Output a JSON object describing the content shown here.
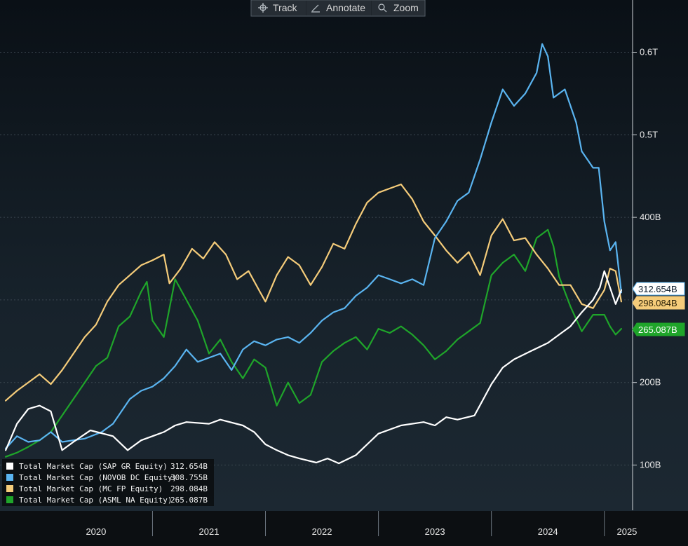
{
  "toolbar": {
    "track_label": "Track",
    "annotate_label": "Annotate",
    "zoom_label": "Zoom"
  },
  "chart_data": {
    "type": "line",
    "title": "",
    "xlabel": "",
    "ylabel": "",
    "x_ticks": [
      "2020",
      "2021",
      "2022",
      "2023",
      "2024",
      "2025"
    ],
    "y_ticks": [
      "100B",
      "200B",
      "400B",
      "0.5T",
      "0.6T"
    ],
    "y_tick_values": [
      100,
      200,
      400,
      500,
      600
    ],
    "xlim": [
      2019.65,
      2025.25
    ],
    "ylim": [
      50,
      650
    ],
    "grid": true,
    "legend_position": "bottom-left",
    "series": [
      {
        "name": "Total Market Cap (SAP GR Equity)",
        "last_value": "312.654B",
        "color": "#ffffff",
        "points": [
          [
            2019.7,
            118
          ],
          [
            2019.8,
            150
          ],
          [
            2019.9,
            168
          ],
          [
            2020.0,
            172
          ],
          [
            2020.1,
            165
          ],
          [
            2020.2,
            118
          ],
          [
            2020.3,
            128
          ],
          [
            2020.45,
            142
          ],
          [
            2020.65,
            135
          ],
          [
            2020.78,
            118
          ],
          [
            2020.9,
            130
          ],
          [
            2021.0,
            135
          ],
          [
            2021.1,
            140
          ],
          [
            2021.2,
            148
          ],
          [
            2021.3,
            152
          ],
          [
            2021.5,
            150
          ],
          [
            2021.6,
            155
          ],
          [
            2021.8,
            148
          ],
          [
            2021.9,
            140
          ],
          [
            2022.0,
            125
          ],
          [
            2022.1,
            118
          ],
          [
            2022.2,
            112
          ],
          [
            2022.3,
            108
          ],
          [
            2022.45,
            103
          ],
          [
            2022.55,
            108
          ],
          [
            2022.65,
            102
          ],
          [
            2022.8,
            112
          ],
          [
            2022.9,
            125
          ],
          [
            2023.0,
            138
          ],
          [
            2023.2,
            148
          ],
          [
            2023.4,
            152
          ],
          [
            2023.5,
            148
          ],
          [
            2023.6,
            158
          ],
          [
            2023.7,
            155
          ],
          [
            2023.85,
            160
          ],
          [
            2024.0,
            198
          ],
          [
            2024.1,
            218
          ],
          [
            2024.2,
            228
          ],
          [
            2024.35,
            238
          ],
          [
            2024.5,
            248
          ],
          [
            2024.6,
            258
          ],
          [
            2024.7,
            268
          ],
          [
            2024.8,
            285
          ],
          [
            2024.9,
            300
          ],
          [
            2024.96,
            315
          ],
          [
            2025.0,
            335
          ],
          [
            2025.05,
            315
          ],
          [
            2025.1,
            295
          ],
          [
            2025.15,
            312
          ]
        ]
      },
      {
        "name": "Total Market Cap (NOVOB DC Equity)",
        "last_value": "308.755B",
        "color": "#5ab4f0",
        "points": [
          [
            2019.7,
            120
          ],
          [
            2019.8,
            135
          ],
          [
            2019.9,
            128
          ],
          [
            2020.0,
            130
          ],
          [
            2020.1,
            140
          ],
          [
            2020.2,
            128
          ],
          [
            2020.4,
            132
          ],
          [
            2020.55,
            140
          ],
          [
            2020.65,
            150
          ],
          [
            2020.8,
            180
          ],
          [
            2020.9,
            190
          ],
          [
            2021.0,
            195
          ],
          [
            2021.1,
            205
          ],
          [
            2021.2,
            220
          ],
          [
            2021.3,
            240
          ],
          [
            2021.4,
            225
          ],
          [
            2021.5,
            230
          ],
          [
            2021.6,
            235
          ],
          [
            2021.7,
            215
          ],
          [
            2021.8,
            240
          ],
          [
            2021.9,
            250
          ],
          [
            2022.0,
            245
          ],
          [
            2022.1,
            252
          ],
          [
            2022.2,
            255
          ],
          [
            2022.3,
            248
          ],
          [
            2022.4,
            260
          ],
          [
            2022.5,
            275
          ],
          [
            2022.6,
            285
          ],
          [
            2022.7,
            290
          ],
          [
            2022.8,
            305
          ],
          [
            2022.9,
            315
          ],
          [
            2023.0,
            330
          ],
          [
            2023.1,
            325
          ],
          [
            2023.2,
            320
          ],
          [
            2023.3,
            325
          ],
          [
            2023.4,
            318
          ],
          [
            2023.5,
            375
          ],
          [
            2023.6,
            395
          ],
          [
            2023.7,
            420
          ],
          [
            2023.8,
            430
          ],
          [
            2023.9,
            470
          ],
          [
            2024.0,
            515
          ],
          [
            2024.1,
            555
          ],
          [
            2024.2,
            535
          ],
          [
            2024.3,
            550
          ],
          [
            2024.4,
            575
          ],
          [
            2024.45,
            610
          ],
          [
            2024.5,
            595
          ],
          [
            2024.55,
            545
          ],
          [
            2024.65,
            555
          ],
          [
            2024.75,
            515
          ],
          [
            2024.8,
            480
          ],
          [
            2024.85,
            470
          ],
          [
            2024.9,
            460
          ],
          [
            2024.95,
            460
          ],
          [
            2025.0,
            395
          ],
          [
            2025.05,
            360
          ],
          [
            2025.1,
            370
          ],
          [
            2025.15,
            309
          ]
        ]
      },
      {
        "name": "Total Market Cap (MC FP Equity)",
        "last_value": "298.084B",
        "color": "#f5cc7a",
        "points": [
          [
            2019.7,
            178
          ],
          [
            2019.8,
            190
          ],
          [
            2019.9,
            200
          ],
          [
            2020.0,
            210
          ],
          [
            2020.1,
            198
          ],
          [
            2020.2,
            215
          ],
          [
            2020.3,
            235
          ],
          [
            2020.4,
            255
          ],
          [
            2020.5,
            270
          ],
          [
            2020.6,
            298
          ],
          [
            2020.7,
            318
          ],
          [
            2020.8,
            330
          ],
          [
            2020.9,
            342
          ],
          [
            2021.0,
            348
          ],
          [
            2021.1,
            355
          ],
          [
            2021.15,
            320
          ],
          [
            2021.25,
            338
          ],
          [
            2021.35,
            362
          ],
          [
            2021.45,
            350
          ],
          [
            2021.55,
            370
          ],
          [
            2021.65,
            355
          ],
          [
            2021.75,
            325
          ],
          [
            2021.85,
            335
          ],
          [
            2021.95,
            310
          ],
          [
            2022.0,
            298
          ],
          [
            2022.1,
            330
          ],
          [
            2022.2,
            352
          ],
          [
            2022.3,
            342
          ],
          [
            2022.4,
            318
          ],
          [
            2022.5,
            340
          ],
          [
            2022.6,
            368
          ],
          [
            2022.7,
            362
          ],
          [
            2022.8,
            392
          ],
          [
            2022.9,
            418
          ],
          [
            2023.0,
            430
          ],
          [
            2023.1,
            435
          ],
          [
            2023.2,
            440
          ],
          [
            2023.3,
            422
          ],
          [
            2023.4,
            395
          ],
          [
            2023.5,
            378
          ],
          [
            2023.6,
            360
          ],
          [
            2023.7,
            345
          ],
          [
            2023.8,
            358
          ],
          [
            2023.9,
            330
          ],
          [
            2024.0,
            378
          ],
          [
            2024.1,
            398
          ],
          [
            2024.2,
            372
          ],
          [
            2024.3,
            375
          ],
          [
            2024.4,
            355
          ],
          [
            2024.5,
            338
          ],
          [
            2024.6,
            318
          ],
          [
            2024.7,
            318
          ],
          [
            2024.8,
            295
          ],
          [
            2024.9,
            290
          ],
          [
            2025.0,
            312
          ],
          [
            2025.05,
            338
          ],
          [
            2025.1,
            335
          ],
          [
            2025.15,
            298
          ]
        ]
      },
      {
        "name": "Total Market Cap (ASML NA Equity)",
        "last_value": "265.087B",
        "color": "#1fa52a",
        "points": [
          [
            2019.7,
            110
          ],
          [
            2019.8,
            115
          ],
          [
            2019.9,
            122
          ],
          [
            2020.0,
            130
          ],
          [
            2020.1,
            140
          ],
          [
            2020.2,
            160
          ],
          [
            2020.3,
            180
          ],
          [
            2020.4,
            200
          ],
          [
            2020.5,
            220
          ],
          [
            2020.6,
            230
          ],
          [
            2020.7,
            268
          ],
          [
            2020.8,
            280
          ],
          [
            2020.9,
            310
          ],
          [
            2020.95,
            322
          ],
          [
            2021.0,
            275
          ],
          [
            2021.1,
            255
          ],
          [
            2021.2,
            325
          ],
          [
            2021.3,
            300
          ],
          [
            2021.4,
            275
          ],
          [
            2021.5,
            235
          ],
          [
            2021.6,
            252
          ],
          [
            2021.7,
            225
          ],
          [
            2021.8,
            205
          ],
          [
            2021.9,
            228
          ],
          [
            2022.0,
            218
          ],
          [
            2022.1,
            172
          ],
          [
            2022.2,
            200
          ],
          [
            2022.3,
            175
          ],
          [
            2022.4,
            185
          ],
          [
            2022.5,
            225
          ],
          [
            2022.6,
            238
          ],
          [
            2022.7,
            248
          ],
          [
            2022.8,
            255
          ],
          [
            2022.9,
            240
          ],
          [
            2023.0,
            265
          ],
          [
            2023.1,
            260
          ],
          [
            2023.2,
            268
          ],
          [
            2023.3,
            258
          ],
          [
            2023.4,
            245
          ],
          [
            2023.5,
            228
          ],
          [
            2023.6,
            238
          ],
          [
            2023.7,
            252
          ],
          [
            2023.8,
            262
          ],
          [
            2023.9,
            272
          ],
          [
            2024.0,
            330
          ],
          [
            2024.1,
            345
          ],
          [
            2024.2,
            355
          ],
          [
            2024.3,
            335
          ],
          [
            2024.4,
            375
          ],
          [
            2024.5,
            385
          ],
          [
            2024.55,
            365
          ],
          [
            2024.6,
            328
          ],
          [
            2024.7,
            292
          ],
          [
            2024.8,
            262
          ],
          [
            2024.9,
            282
          ],
          [
            2025.0,
            282
          ],
          [
            2025.05,
            268
          ],
          [
            2025.1,
            258
          ],
          [
            2025.15,
            265
          ]
        ]
      }
    ]
  }
}
